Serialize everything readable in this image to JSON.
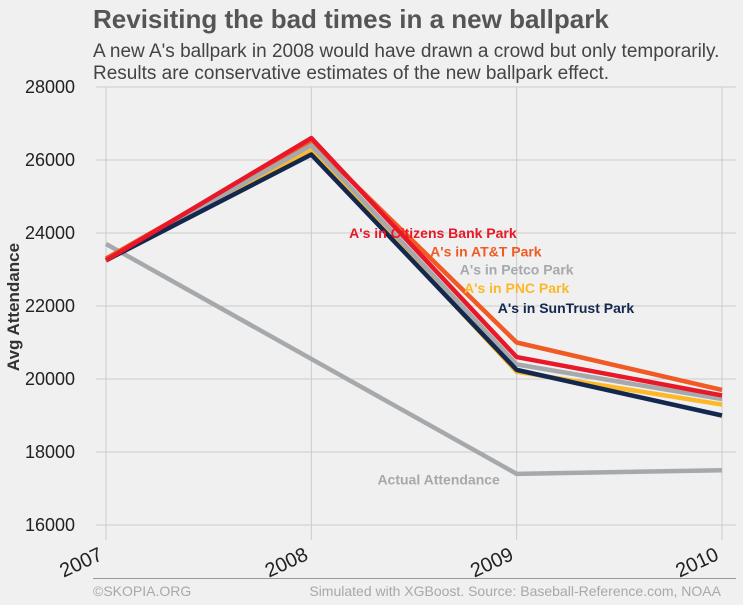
{
  "header": {
    "title": "Revisiting the bad times in a new ballpark",
    "subtitle_line1": "A new A's ballpark in 2008 would have drawn a crowd but only temporarily.",
    "subtitle_line2": "Results are conservative estimates of the new ballpark effect."
  },
  "footer": {
    "left": "©SKOPIA.ORG",
    "right": "Simulated with XGBoost. Source: Baseball-Reference.com, NOAA"
  },
  "chart_data": {
    "type": "line",
    "ylabel": "Avg Attendance",
    "xlabel": "",
    "x": [
      2007,
      2008,
      2009,
      2010
    ],
    "x_tick_labels": [
      "2007",
      "2008",
      "2009",
      "2010"
    ],
    "ylim": [
      16000,
      28000
    ],
    "y_ticks": [
      16000,
      18000,
      20000,
      22000,
      24000,
      26000,
      28000
    ],
    "y_tick_labels": [
      "16000",
      "18000",
      "20000",
      "22000",
      "24000",
      "26000",
      "28000"
    ],
    "grid": true,
    "series": [
      {
        "name": "Actual Attendance",
        "color": "#a5a9ac",
        "values": [
          23700,
          20550,
          17400,
          17500
        ]
      },
      {
        "name": "A's in AT&T Park",
        "color": "#f15a24",
        "values": [
          23300,
          26500,
          21000,
          19700
        ]
      },
      {
        "name": "A's in PNC Park",
        "color": "#fdb827",
        "values": [
          23250,
          26250,
          20200,
          19300
        ]
      },
      {
        "name": "A's in Petco Park",
        "color": "#a5a9ac",
        "values": [
          23250,
          26400,
          20400,
          19450
        ]
      },
      {
        "name": "A's in SunTrust Park",
        "color": "#13274f",
        "values": [
          23250,
          26150,
          20250,
          19000
        ]
      },
      {
        "name": "A's in Citizens Bank Park",
        "color": "#e81828",
        "values": [
          23250,
          26600,
          20600,
          19550
        ]
      }
    ],
    "annotations": [
      {
        "text": "A's in Citizens Bank Park",
        "color": "#e81828",
        "x": 2009.0,
        "y": 24000,
        "align": "right"
      },
      {
        "text": "A's in AT&T Park",
        "color": "#f15a24",
        "x": 2008.85,
        "y": 23500,
        "align": "center"
      },
      {
        "text": "A's in Petco Park",
        "color": "#a5a9ac",
        "x": 2009.0,
        "y": 23000,
        "align": "center"
      },
      {
        "text": "A's in PNC Park",
        "color": "#fdb827",
        "x": 2009.0,
        "y": 22500,
        "align": "center"
      },
      {
        "text": "A's in SunTrust Park",
        "color": "#13274f",
        "x": 2009.24,
        "y": 21950,
        "align": "center"
      },
      {
        "text": "Actual Attendance",
        "color": "#a5a9ac",
        "x": 2008.62,
        "y": 17250,
        "align": "center"
      }
    ]
  }
}
